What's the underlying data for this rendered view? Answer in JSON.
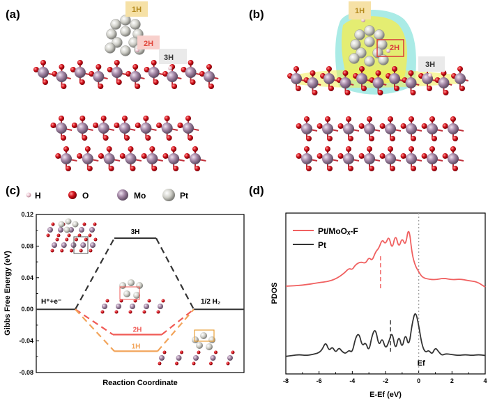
{
  "panels": {
    "a": {
      "label": "(a)",
      "tags": [
        "1H",
        "2H",
        "3H"
      ]
    },
    "b": {
      "label": "(b)",
      "tags": [
        "1H",
        "2H",
        "3H"
      ]
    },
    "c": {
      "label": "(c)"
    },
    "d": {
      "label": "(d)"
    }
  },
  "atom_legend": [
    {
      "symbol": "H",
      "color": "#e9c4cf"
    },
    {
      "symbol": "O",
      "color": "#d3111a"
    },
    {
      "symbol": "Mo",
      "color": "#9b7e9d"
    },
    {
      "symbol": "Pt",
      "color": "#d7d7d0"
    }
  ],
  "chart_data": [
    {
      "type": "line",
      "panel": "(c)",
      "xlabel": "Reaction Coordinate",
      "ylabel": "Gibbs Free Energy (eV)",
      "ylim": [
        -0.08,
        0.12
      ],
      "yticks": [
        "0.12",
        "0.08",
        "0.04",
        "0.00",
        "-0.04",
        "-0.08"
      ],
      "ytick_values": [
        0.12,
        0.08,
        0.04,
        0.0,
        -0.04,
        -0.08
      ],
      "states": [
        {
          "label": "H⁺+e⁻",
          "value": 0.0
        },
        {
          "label": "1/2 H₂",
          "value": 0.0
        }
      ],
      "series": [
        {
          "name": "3H",
          "value": 0.09,
          "color": "#333333"
        },
        {
          "name": "2H",
          "value": -0.032,
          "color": "#f05a55"
        },
        {
          "name": "1H",
          "value": -0.053,
          "color": "#f2a45a"
        }
      ]
    },
    {
      "type": "line",
      "panel": "(d)",
      "xlabel": "E-Ef (eV)",
      "ylabel": "PDOS",
      "xlim": [
        -8,
        4
      ],
      "xticks": [
        "-8",
        "-6",
        "-4",
        "-2",
        "0",
        "2",
        "4"
      ],
      "xtick_values": [
        -8,
        -6,
        -4,
        -2,
        0,
        2,
        4
      ],
      "fermi_label": "Ef",
      "series": [
        {
          "name": "Pt/MoOₓ-F",
          "color": "#f06060",
          "d_band_center": -2.3,
          "x": [
            -8,
            -7,
            -6,
            -5.5,
            -5,
            -4.5,
            -4.2,
            -4,
            -3.8,
            -3.5,
            -3.2,
            -3.0,
            -2.8,
            -2.6,
            -2.4,
            -2.2,
            -2.0,
            -1.8,
            -1.6,
            -1.4,
            -1.2,
            -1.0,
            -0.8,
            -0.6,
            -0.4,
            -0.2,
            0.0,
            0.2,
            0.5,
            1.0,
            1.5,
            2.0,
            2.5,
            3.0,
            3.5,
            4.0
          ],
          "y": [
            0.2,
            0.21,
            0.24,
            0.25,
            0.28,
            0.34,
            0.4,
            0.38,
            0.44,
            0.47,
            0.45,
            0.52,
            0.48,
            0.58,
            0.62,
            0.72,
            0.66,
            0.76,
            0.6,
            0.78,
            0.62,
            0.74,
            0.64,
            0.87,
            0.55,
            0.42,
            0.36,
            0.3,
            0.28,
            0.27,
            0.29,
            0.27,
            0.28,
            0.26,
            0.25,
            0.19
          ]
        },
        {
          "name": "Pt",
          "color": "#333333",
          "d_band_center": -1.7,
          "x": [
            -8,
            -7.6,
            -7.2,
            -6.8,
            -6.4,
            -6.0,
            -5.8,
            -5.6,
            -5.4,
            -5.2,
            -5.0,
            -4.8,
            -4.6,
            -4.4,
            -4.2,
            -4.0,
            -3.8,
            -3.6,
            -3.4,
            -3.2,
            -3.0,
            -2.8,
            -2.6,
            -2.4,
            -2.2,
            -2.0,
            -1.8,
            -1.6,
            -1.4,
            -1.2,
            -1.0,
            -0.8,
            -0.6,
            -0.4,
            -0.2,
            0.0,
            0.2,
            0.4,
            0.6,
            0.8,
            1.0,
            1.2,
            1.4,
            1.6,
            2.0,
            2.4,
            2.8,
            3.2,
            3.6,
            4.0
          ],
          "y": [
            0.04,
            0.05,
            0.06,
            0.05,
            0.06,
            0.08,
            0.12,
            0.2,
            0.1,
            0.15,
            0.08,
            0.14,
            0.09,
            0.07,
            0.11,
            0.08,
            0.25,
            0.3,
            0.15,
            0.2,
            0.09,
            0.28,
            0.35,
            0.15,
            0.25,
            0.12,
            0.2,
            0.32,
            0.1,
            0.28,
            0.12,
            0.3,
            0.14,
            0.4,
            0.55,
            0.38,
            0.16,
            0.08,
            0.11,
            0.06,
            0.14,
            0.09,
            0.05,
            0.07,
            0.06,
            0.05,
            0.06,
            0.05,
            0.06,
            0.05
          ]
        }
      ]
    }
  ]
}
